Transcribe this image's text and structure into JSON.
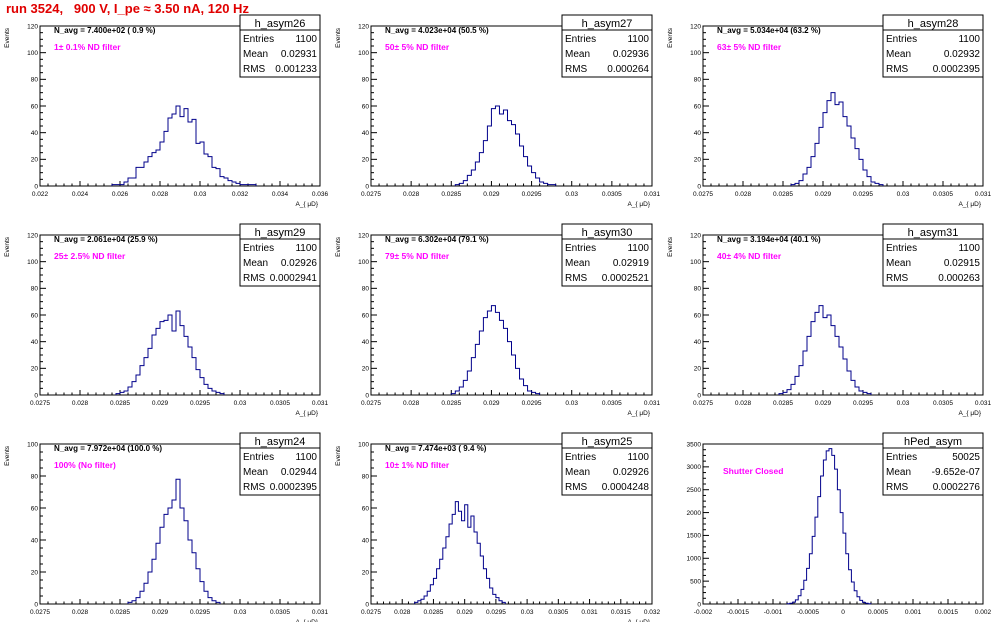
{
  "page_title": "run 3524,   900 V, I_pe ≈ 3.50 nA, 120 Hz",
  "colors": {
    "histogram": "#00008b",
    "label": "#ff00ff",
    "title": "#e00000",
    "frame": "#000000"
  },
  "chart_data": [
    {
      "type": "histogram",
      "name": "h_asym26",
      "xlim": [
        0.022,
        0.036
      ],
      "ylim": [
        0,
        120
      ],
      "xticks": [
        "0.022",
        "0.024",
        "0.026",
        "0.028",
        "0.03",
        "0.032",
        "0.034",
        "0.036"
      ],
      "yticks": [
        "0",
        "20",
        "40",
        "60",
        "80",
        "100",
        "120"
      ],
      "ylabel": "Events",
      "xlabel": "A_{ μD}",
      "navg": "N_avg = 7.400e+02 ( 0.9 %)",
      "filter": "1± 0.1% ND filter",
      "stats": {
        "entries": "1100",
        "mean": "0.02931",
        "rms": "0.001233"
      },
      "bin_start": 0.0256,
      "bin_width": 0.0002,
      "counts": [
        1,
        1,
        1,
        3,
        6,
        6,
        14,
        14,
        18,
        22,
        25,
        27,
        33,
        41,
        51,
        54,
        60,
        52,
        58,
        48,
        50,
        32,
        33,
        24,
        22,
        14,
        13,
        7,
        6,
        4,
        3,
        2,
        1,
        1,
        1,
        1
      ]
    },
    {
      "type": "histogram",
      "name": "h_asym27",
      "xlim": [
        0.0275,
        0.031
      ],
      "ylim": [
        0,
        120
      ],
      "xticks": [
        "0.0275",
        "0.028",
        "0.0285",
        "0.029",
        "0.0295",
        "0.03",
        "0.0305",
        "0.031"
      ],
      "yticks": [
        "0",
        "20",
        "40",
        "60",
        "80",
        "100",
        "120"
      ],
      "ylabel": "Events",
      "xlabel": "A_{ μD}",
      "navg": "N_avg = 4.023e+04 (50.5 %)",
      "filter": "50± 5% ND filter",
      "stats": {
        "entries": "1100",
        "mean": "0.02936",
        "rms": "0.000264"
      },
      "bin_start": 0.02855,
      "bin_width": 5e-05,
      "counts": [
        1,
        2,
        4,
        8,
        12,
        18,
        25,
        34,
        45,
        58,
        60,
        54,
        57,
        49,
        46,
        39,
        30,
        22,
        15,
        10,
        6,
        3,
        2,
        1,
        1
      ]
    },
    {
      "type": "histogram",
      "name": "h_asym28",
      "xlim": [
        0.0275,
        0.031
      ],
      "ylim": [
        0,
        120
      ],
      "xticks": [
        "0.0275",
        "0.028",
        "0.0285",
        "0.029",
        "0.0295",
        "0.03",
        "0.0305",
        "0.031"
      ],
      "yticks": [
        "0",
        "20",
        "40",
        "60",
        "80",
        "100",
        "120"
      ],
      "ylabel": "Events",
      "xlabel": "A_{ μD}",
      "navg": "N_avg = 5.034e+04 (63.2 %)",
      "filter": "63± 5% ND filter",
      "stats": {
        "entries": "1100",
        "mean": "0.02932",
        "rms": "0.0002395"
      },
      "bin_start": 0.0286,
      "bin_width": 5e-05,
      "counts": [
        1,
        2,
        4,
        9,
        14,
        22,
        32,
        44,
        55,
        64,
        70,
        61,
        63,
        52,
        45,
        36,
        28,
        20,
        12,
        7,
        3,
        2,
        1
      ]
    },
    {
      "type": "histogram",
      "name": "h_asym29",
      "xlim": [
        0.0275,
        0.031
      ],
      "ylim": [
        0,
        120
      ],
      "xticks": [
        "0.0275",
        "0.028",
        "0.0285",
        "0.029",
        "0.0295",
        "0.03",
        "0.0305",
        "0.031"
      ],
      "yticks": [
        "0",
        "20",
        "40",
        "60",
        "80",
        "100",
        "120"
      ],
      "ylabel": "Events",
      "xlabel": "A_{ μD}",
      "navg": "N_avg = 2.061e+04 (25.9 %)",
      "filter": "25± 2.5% ND filter",
      "stats": {
        "entries": "1100",
        "mean": "0.02926",
        "rms": "0.0002941"
      },
      "bin_start": 0.02845,
      "bin_width": 5e-05,
      "counts": [
        1,
        2,
        3,
        6,
        10,
        15,
        22,
        28,
        35,
        45,
        50,
        55,
        56,
        60,
        48,
        63,
        52,
        44,
        36,
        28,
        19,
        13,
        8,
        5,
        3,
        2,
        1
      ]
    },
    {
      "type": "histogram",
      "name": "h_asym30",
      "xlim": [
        0.0275,
        0.031
      ],
      "ylim": [
        0,
        120
      ],
      "xticks": [
        "0.0275",
        "0.028",
        "0.0285",
        "0.029",
        "0.0295",
        "0.03",
        "0.0305",
        "0.031"
      ],
      "yticks": [
        "0",
        "20",
        "40",
        "60",
        "80",
        "100",
        "120"
      ],
      "ylabel": "Events",
      "xlabel": "A_{ μD}",
      "navg": "N_avg = 6.302e+04 (79.1 %)",
      "filter": "79± 5% ND filter",
      "stats": {
        "entries": "1100",
        "mean": "0.02919",
        "rms": "0.0002521"
      },
      "bin_start": 0.0285,
      "bin_width": 5e-05,
      "counts": [
        1,
        3,
        6,
        11,
        18,
        28,
        38,
        48,
        58,
        63,
        67,
        62,
        56,
        50,
        40,
        30,
        20,
        12,
        7,
        3,
        2,
        1
      ]
    },
    {
      "type": "histogram",
      "name": "h_asym31",
      "xlim": [
        0.0275,
        0.031
      ],
      "ylim": [
        0,
        120
      ],
      "xticks": [
        "0.0275",
        "0.028",
        "0.0285",
        "0.029",
        "0.0295",
        "0.03",
        "0.0305",
        "0.031"
      ],
      "yticks": [
        "0",
        "20",
        "40",
        "60",
        "80",
        "100",
        "120"
      ],
      "ylabel": "Events",
      "xlabel": "A_{ μD}",
      "navg": "N_avg = 3.194e+04 (40.1 %)",
      "filter": "40± 4% ND filter",
      "stats": {
        "entries": "1100",
        "mean": "0.02915",
        "rms": "0.000263"
      },
      "bin_start": 0.02845,
      "bin_width": 5e-05,
      "counts": [
        1,
        2,
        4,
        8,
        14,
        22,
        33,
        44,
        55,
        62,
        67,
        58,
        60,
        52,
        44,
        36,
        27,
        18,
        11,
        6,
        3,
        2,
        1
      ]
    },
    {
      "type": "histogram",
      "name": "h_asym24",
      "xlim": [
        0.0275,
        0.031
      ],
      "ylim": [
        0,
        100
      ],
      "xticks": [
        "0.0275",
        "0.028",
        "0.0285",
        "0.029",
        "0.0295",
        "0.03",
        "0.0305",
        "0.031"
      ],
      "yticks": [
        "0",
        "20",
        "40",
        "60",
        "80",
        "100"
      ],
      "ylabel": "Events",
      "xlabel": "A_{ μD}",
      "navg": "N_avg = 7.972e+04 (100.0 %)",
      "filter": "100% (No filter)",
      "stats": {
        "entries": "1100",
        "mean": "0.02944",
        "rms": "0.0002395"
      },
      "bin_start": 0.0286,
      "bin_width": 5e-05,
      "counts": [
        1,
        2,
        4,
        8,
        13,
        20,
        28,
        38,
        48,
        56,
        60,
        65,
        78,
        60,
        52,
        40,
        32,
        22,
        14,
        8,
        4,
        2,
        1
      ]
    },
    {
      "type": "histogram",
      "name": "h_asym25",
      "xlim": [
        0.0275,
        0.032
      ],
      "ylim": [
        0,
        100
      ],
      "xticks": [
        "0.0275",
        "0.028",
        "0.0285",
        "0.029",
        "0.0295",
        "0.03",
        "0.0305",
        "0.031",
        "0.0315",
        "0.032"
      ],
      "yticks": [
        "0",
        "20",
        "40",
        "60",
        "80",
        "100"
      ],
      "ylabel": "Events",
      "xlabel": "A_{ μD}",
      "navg": "N_avg = 7.474e+03 ( 9.4 %)",
      "filter": "10± 1% ND filter",
      "stats": {
        "entries": "1100",
        "mean": "0.02926",
        "rms": "0.0004248"
      },
      "bin_start": 0.0282,
      "bin_width": 5e-05,
      "counts": [
        1,
        2,
        3,
        5,
        8,
        12,
        16,
        22,
        28,
        35,
        42,
        50,
        56,
        64,
        58,
        52,
        62,
        48,
        55,
        45,
        38,
        30,
        22,
        16,
        10,
        6,
        4,
        2,
        1
      ]
    },
    {
      "type": "histogram",
      "name": "hPed_asym",
      "xlim": [
        -0.002,
        0.002
      ],
      "ylim": [
        0,
        3500
      ],
      "xticks": [
        "-0.002",
        "-0.0015",
        "-0.001",
        "-0.0005",
        "0",
        "0.0005",
        "0.001",
        "0.0015",
        "0.002"
      ],
      "yticks": [
        "0",
        "500",
        "1000",
        "1500",
        "2000",
        "2500",
        "3000",
        "3500"
      ],
      "ylabel": "",
      "xlabel": "",
      "navg": "",
      "filter": "Shutter Closed",
      "stats": {
        "entries": "50025",
        "mean": "-9.652e-07",
        "rms": "0.0002276"
      },
      "bin_start": -0.0008,
      "bin_width": 4e-05,
      "counts": [
        5,
        15,
        40,
        90,
        180,
        320,
        520,
        780,
        1100,
        1480,
        1900,
        2350,
        2800,
        3150,
        3350,
        3400,
        3250,
        2950,
        2500,
        2000,
        1550,
        1100,
        750,
        480,
        290,
        160,
        80,
        35,
        15,
        5
      ]
    }
  ]
}
